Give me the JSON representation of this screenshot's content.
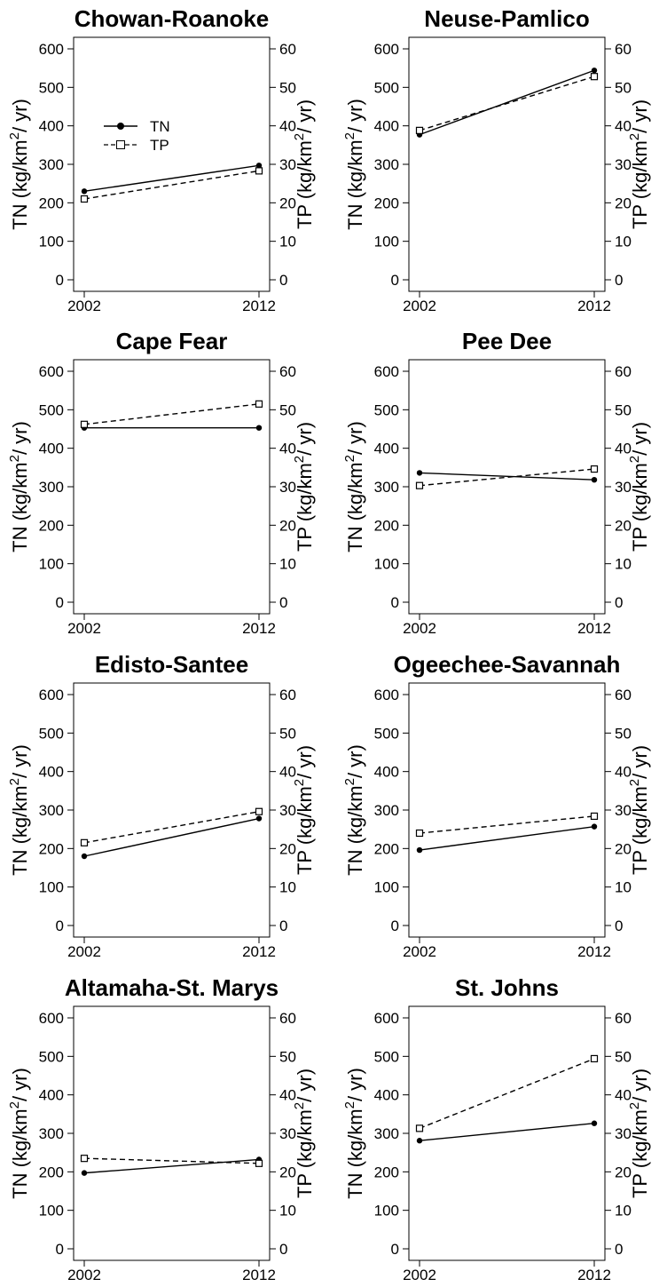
{
  "chart_data": [
    {
      "type": "line",
      "title": "Chowan-Roanoke",
      "x": [
        2002,
        2012
      ],
      "series": [
        {
          "name": "TN",
          "axis": "left",
          "values": [
            230,
            297
          ],
          "marker": "filled-circle",
          "line": "solid"
        },
        {
          "name": "TP",
          "axis": "right",
          "values": [
            21,
            28.3
          ],
          "marker": "open-square",
          "line": "dashed"
        }
      ],
      "ylabel_left": "TN (kg/km2/yr)",
      "ylabel_right": "TP (kg/km2/yr)",
      "ylim_left": [
        0,
        600
      ],
      "ylim_right": [
        0,
        60
      ],
      "legend": "top-left"
    },
    {
      "type": "line",
      "title": "Neuse-Pamlico",
      "x": [
        2002,
        2012
      ],
      "series": [
        {
          "name": "TN",
          "axis": "left",
          "values": [
            377,
            544
          ]
        },
        {
          "name": "TP",
          "axis": "right",
          "values": [
            38.8,
            52.8
          ]
        }
      ],
      "ylabel_left": "TN (kg/km2/yr)",
      "ylabel_right": "TP (kg/km2/yr)",
      "ylim_left": [
        0,
        600
      ],
      "ylim_right": [
        0,
        60
      ]
    },
    {
      "type": "line",
      "title": "Cape Fear",
      "x": [
        2002,
        2012
      ],
      "series": [
        {
          "name": "TN",
          "axis": "left",
          "values": [
            453,
            453
          ]
        },
        {
          "name": "TP",
          "axis": "right",
          "values": [
            46.2,
            51.5
          ]
        }
      ],
      "ylabel_left": "TN (kg/km2/yr)",
      "ylabel_right": "TP (kg/km2/yr)",
      "ylim_left": [
        0,
        600
      ],
      "ylim_right": [
        0,
        60
      ]
    },
    {
      "type": "line",
      "title": "Pee Dee",
      "x": [
        2002,
        2012
      ],
      "series": [
        {
          "name": "TN",
          "axis": "left",
          "values": [
            336,
            318
          ]
        },
        {
          "name": "TP",
          "axis": "right",
          "values": [
            30.3,
            34.6
          ]
        }
      ],
      "ylabel_left": "TN (kg/km2/yr)",
      "ylabel_right": "TP (kg/km2/yr)",
      "ylim_left": [
        0,
        600
      ],
      "ylim_right": [
        0,
        60
      ]
    },
    {
      "type": "line",
      "title": "Edisto-Santee",
      "x": [
        2002,
        2012
      ],
      "series": [
        {
          "name": "TN",
          "axis": "left",
          "values": [
            180,
            278
          ]
        },
        {
          "name": "TP",
          "axis": "right",
          "values": [
            21.5,
            29.6
          ]
        }
      ],
      "ylabel_left": "TN (kg/km2/yr)",
      "ylabel_right": "TP (kg/km2/yr)",
      "ylim_left": [
        0,
        600
      ],
      "ylim_right": [
        0,
        60
      ]
    },
    {
      "type": "line",
      "title": "Ogeechee-Savannah",
      "x": [
        2002,
        2012
      ],
      "series": [
        {
          "name": "TN",
          "axis": "left",
          "values": [
            196,
            257
          ]
        },
        {
          "name": "TP",
          "axis": "right",
          "values": [
            24,
            28.4
          ]
        }
      ],
      "ylabel_left": "TN (kg/km2/yr)",
      "ylabel_right": "TP (kg/km2/yr)",
      "ylim_left": [
        0,
        600
      ],
      "ylim_right": [
        0,
        60
      ]
    },
    {
      "type": "line",
      "title": "Altamaha-St. Marys",
      "x": [
        2002,
        2012
      ],
      "series": [
        {
          "name": "TN",
          "axis": "left",
          "values": [
            197,
            232
          ]
        },
        {
          "name": "TP",
          "axis": "right",
          "values": [
            23.5,
            22.2
          ]
        }
      ],
      "ylabel_left": "TN (kg/km2/yr)",
      "ylabel_right": "TP (kg/km2/yr)",
      "ylim_left": [
        0,
        600
      ],
      "ylim_right": [
        0,
        60
      ]
    },
    {
      "type": "line",
      "title": "St. Johns",
      "x": [
        2002,
        2012
      ],
      "series": [
        {
          "name": "TN",
          "axis": "left",
          "values": [
            281,
            326
          ]
        },
        {
          "name": "TP",
          "axis": "right",
          "values": [
            31.3,
            49.4
          ]
        }
      ],
      "ylabel_left": "TN (kg/km2/yr)",
      "ylabel_right": "TP (kg/km2/yr)",
      "ylim_left": [
        0,
        600
      ],
      "ylim_right": [
        0,
        60
      ]
    }
  ],
  "left_ticks": [
    "0",
    "100",
    "200",
    "300",
    "400",
    "500",
    "600"
  ],
  "right_ticks": [
    "0",
    "10",
    "20",
    "30",
    "40",
    "50",
    "60"
  ],
  "x_ticks": [
    "2002",
    "2012"
  ],
  "legend": {
    "tn": "TN",
    "tp": "TP"
  },
  "axis_label_parts": {
    "left_prefix": "TN (kg/km",
    "right_prefix": "TP (kg/km",
    "superscript": "2",
    "suffix": "/ yr)"
  },
  "colors": {
    "line": "#000000",
    "background": "#ffffff"
  }
}
